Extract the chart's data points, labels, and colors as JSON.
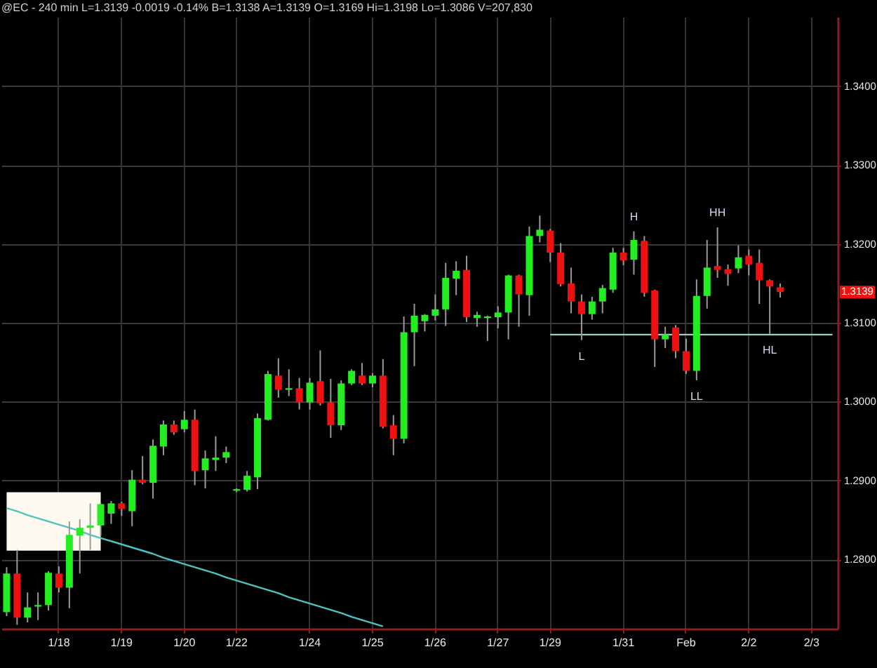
{
  "chart_data": {
    "type": "candlestick",
    "title": "@EC - 240 min L=1.3139 -0.0019 -0.14% B=1.3138 A=1.3139 O=1.3169 Hi=1.3198 Lo=1.3086 V=207,830",
    "categories": [
      null,
      null,
      null,
      null,
      null,
      "1/18",
      null,
      null,
      null,
      null,
      null,
      "1/19",
      null,
      null,
      null,
      null,
      null,
      "1/20",
      null,
      null,
      null,
      null,
      "1/22",
      null,
      null,
      null,
      null,
      null,
      null,
      "1/24",
      null,
      null,
      null,
      null,
      null,
      "1/25",
      null,
      null,
      null,
      null,
      null,
      "1/26",
      null,
      null,
      null,
      null,
      null,
      "1/27",
      null,
      null,
      null,
      null,
      "1/29",
      null,
      null,
      null,
      null,
      null,
      null,
      "1/31",
      null,
      null,
      null,
      null,
      null,
      "Feb",
      null,
      null,
      null,
      null,
      null,
      "2/2",
      null,
      null,
      null,
      null,
      null,
      "2/3",
      null,
      null
    ],
    "ohlc": [
      [
        1.2733,
        1.279,
        1.2728,
        1.2782
      ],
      [
        1.2782,
        1.2812,
        1.2717,
        1.2726
      ],
      [
        1.2726,
        1.2758,
        1.272,
        1.2739
      ],
      [
        1.274,
        1.2758,
        1.2723,
        1.2742
      ],
      [
        1.2742,
        1.2785,
        1.2735,
        1.2783
      ],
      [
        1.2782,
        1.2791,
        1.2758,
        1.2764
      ],
      [
        1.2764,
        1.2848,
        1.2738,
        1.2831
      ],
      [
        1.283,
        1.2851,
        1.2782,
        1.284
      ],
      [
        1.284,
        1.2871,
        1.2812,
        1.2843
      ],
      [
        1.2843,
        1.2871,
        1.283,
        1.287
      ],
      [
        1.2858,
        1.2874,
        1.2845,
        1.2871
      ],
      [
        1.2871,
        1.2873,
        1.2855,
        1.2864
      ],
      [
        1.2861,
        1.2913,
        1.2842,
        1.2901
      ],
      [
        1.2901,
        1.2931,
        1.2895,
        1.2897
      ],
      [
        1.2897,
        1.2952,
        1.2877,
        1.2944
      ],
      [
        1.2943,
        1.2976,
        1.2932,
        1.2971
      ],
      [
        1.2971,
        1.2976,
        1.2958,
        1.2961
      ],
      [
        1.2965,
        1.2988,
        1.2961,
        1.2977
      ],
      [
        1.2977,
        1.299,
        1.2894,
        1.2912
      ],
      [
        1.2913,
        1.2938,
        1.289,
        1.2928
      ],
      [
        1.2926,
        1.2956,
        1.2912,
        1.2929
      ],
      [
        1.2929,
        1.2943,
        1.2922,
        1.2936
      ],
      [
        1.2887,
        1.289,
        1.2885,
        1.2889
      ],
      [
        1.2888,
        1.2912,
        1.2886,
        1.2906
      ],
      [
        1.2904,
        1.2985,
        1.2889,
        1.2979
      ],
      [
        1.2977,
        1.3039,
        1.2976,
        1.3035
      ],
      [
        1.3033,
        1.3055,
        1.3005,
        1.3015
      ],
      [
        1.3015,
        1.3041,
        1.3007,
        1.3017
      ],
      [
        1.3017,
        1.303,
        1.299,
        1.2999
      ],
      [
        1.2999,
        1.303,
        1.299,
        1.3024
      ],
      [
        1.3026,
        1.3065,
        1.2995,
        1.2998
      ],
      [
        1.2999,
        1.3029,
        1.2954,
        1.297
      ],
      [
        1.297,
        1.3027,
        1.2964,
        1.3023
      ],
      [
        1.3023,
        1.3041,
        1.3021,
        1.3039
      ],
      [
        1.3033,
        1.3049,
        1.3021,
        1.3023
      ],
      [
        1.3023,
        1.3036,
        1.3018,
        1.3033
      ],
      [
        1.3033,
        1.3054,
        1.2966,
        1.2968
      ],
      [
        1.297,
        1.2983,
        1.2932,
        1.2953
      ],
      [
        1.2953,
        1.3108,
        1.2947,
        1.3088
      ],
      [
        1.3088,
        1.3124,
        1.3045,
        1.3109
      ],
      [
        1.3102,
        1.3111,
        1.3089,
        1.311
      ],
      [
        1.3109,
        1.3136,
        1.3103,
        1.3117
      ],
      [
        1.3117,
        1.3176,
        1.3096,
        1.3157
      ],
      [
        1.3156,
        1.3178,
        1.3135,
        1.3166
      ],
      [
        1.3167,
        1.3185,
        1.3101,
        1.3107
      ],
      [
        1.3106,
        1.3114,
        1.3095,
        1.311
      ],
      [
        1.3106,
        1.3109,
        1.3077,
        1.3108
      ],
      [
        1.3107,
        1.3121,
        1.3093,
        1.3113
      ],
      [
        1.3113,
        1.3161,
        1.3079,
        1.316
      ],
      [
        1.316,
        1.3161,
        1.3095,
        1.3136
      ],
      [
        1.3135,
        1.3222,
        1.3109,
        1.321
      ],
      [
        1.321,
        1.3236,
        1.3202,
        1.3218
      ],
      [
        1.3217,
        1.3219,
        1.3177,
        1.3189
      ],
      [
        1.3189,
        1.3201,
        1.3146,
        1.3149
      ],
      [
        1.315,
        1.317,
        1.3112,
        1.3127
      ],
      [
        1.3127,
        1.3136,
        1.3078,
        1.3111
      ],
      [
        1.3111,
        1.3133,
        1.3104,
        1.3127
      ],
      [
        1.3127,
        1.3148,
        1.3112,
        1.3144
      ],
      [
        1.3142,
        1.3195,
        1.3138,
        1.3189
      ],
      [
        1.3189,
        1.3195,
        1.3173,
        1.3179
      ],
      [
        1.318,
        1.3216,
        1.3161,
        1.3205
      ],
      [
        1.3204,
        1.321,
        1.3133,
        1.3138
      ],
      [
        1.3141,
        1.3142,
        1.3044,
        1.3079
      ],
      [
        1.3079,
        1.3095,
        1.3068,
        1.3085
      ],
      [
        1.3094,
        1.3097,
        1.3055,
        1.3064
      ],
      [
        1.3064,
        1.308,
        1.3035,
        1.3039
      ],
      [
        1.3039,
        1.3155,
        1.3027,
        1.3134
      ],
      [
        1.3134,
        1.3205,
        1.3118,
        1.317
      ],
      [
        1.3172,
        1.3221,
        1.3157,
        1.3167
      ],
      [
        1.3168,
        1.3174,
        1.3147,
        1.3162
      ],
      [
        1.3169,
        1.3198,
        1.3163,
        1.3183
      ],
      [
        1.3185,
        1.3193,
        1.316,
        1.3174
      ],
      [
        1.3176,
        1.3193,
        1.3124,
        1.3154
      ],
      [
        1.3154,
        1.3155,
        1.3086,
        1.3146
      ],
      [
        1.3145,
        1.315,
        1.3132,
        1.3139
      ],
      null,
      null,
      null,
      null,
      null
    ],
    "colors": [
      "#22ee22",
      "#ee1111",
      "#22ee22",
      "#22ee22",
      "#22ee22",
      "#ee1111",
      "#22ee22",
      "#22ee22",
      "#22ee22",
      "#22ee22",
      "#22ee22",
      "#ee1111",
      "#22ee22",
      "#ee1111",
      "#22ee22",
      "#22ee22",
      "#ee1111",
      "#22ee22",
      "#ee1111",
      "#22ee22",
      "#22ee22",
      "#22ee22",
      "#22ee22",
      "#22ee22",
      "#22ee22",
      "#22ee22",
      "#ee1111",
      "#22ee22",
      "#ee1111",
      "#22ee22",
      "#ee1111",
      "#ee1111",
      "#22ee22",
      "#22ee22",
      "#ee1111",
      "#22ee22",
      "#ee1111",
      "#ee1111",
      "#22ee22",
      "#22ee22",
      "#22ee22",
      "#22ee22",
      "#22ee22",
      "#22ee22",
      "#ee1111",
      "#22ee22",
      "#22ee22",
      "#22ee22",
      "#22ee22",
      "#ee1111",
      "#22ee22",
      "#22ee22",
      "#ee1111",
      "#ee1111",
      "#ee1111",
      "#ee1111",
      "#22ee22",
      "#22ee22",
      "#22ee22",
      "#ee1111",
      "#22ee22",
      "#ee1111",
      "#ee1111",
      "#22ee22",
      "#ee1111",
      "#ee1111",
      "#22ee22",
      "#22ee22",
      "#ee1111",
      "#ee1111",
      "#22ee22",
      "#ee1111",
      "#ee1111",
      "#ee1111",
      "#ee1111",
      null,
      null,
      null,
      null,
      null
    ],
    "series": [
      {
        "type": "area",
        "color": "#fffaf0",
        "values": [
          null,
          null,
          null,
          null,
          null,
          null,
          null,
          null,
          null,
          null,
          null,
          null,
          null,
          null,
          null,
          null,
          null,
          null,
          null,
          null,
          null,
          null,
          null,
          null,
          null,
          null,
          null,
          null,
          null,
          null,
          null,
          null,
          null,
          null,
          null,
          null,
          null,
          null,
          null,
          null,
          null,
          null,
          null,
          null,
          null,
          null,
          null,
          null,
          null,
          null,
          null,
          null,
          null,
          null,
          null,
          null,
          null,
          null,
          null,
          null,
          null,
          null,
          null,
          null,
          null,
          null,
          null,
          null,
          null,
          null,
          null,
          null,
          null,
          null,
          null,
          null,
          null,
          null,
          null,
          null
        ],
        "lower": [
          1.2811,
          1.2811,
          1.2811,
          1.2811,
          1.2811,
          1.2811,
          1.2811,
          1.2811,
          1.2811,
          1.2811,
          null,
          null,
          null,
          null,
          null,
          null,
          null,
          null,
          null,
          null,
          null,
          null,
          null,
          null,
          null,
          null,
          null,
          null,
          null,
          null,
          null,
          null,
          null,
          null,
          null,
          null,
          null,
          null,
          null,
          null,
          null,
          null,
          null,
          null,
          null,
          null,
          null,
          null,
          null,
          null,
          null,
          null,
          null,
          null,
          null,
          null,
          null,
          null,
          null,
          null,
          null,
          null,
          null,
          null,
          null,
          null,
          null,
          null,
          null,
          null,
          null,
          null,
          null,
          null,
          null,
          null,
          null,
          null,
          null,
          null
        ],
        "upper": [
          1.2885,
          1.2885,
          1.2885,
          1.2885,
          1.2885,
          1.2885,
          1.2885,
          1.2885,
          1.2885,
          1.2885,
          null,
          null,
          null,
          null,
          null,
          null,
          null,
          null,
          null,
          null,
          null,
          null,
          null,
          null,
          null,
          null,
          null,
          null,
          null,
          null,
          null,
          null,
          null,
          null,
          null,
          null,
          null,
          null,
          null,
          null,
          null,
          null,
          null,
          null,
          null,
          null,
          null,
          null,
          null,
          null,
          null,
          null,
          null,
          null,
          null,
          null,
          null,
          null,
          null,
          null,
          null,
          null,
          null,
          null,
          null,
          null,
          null,
          null,
          null,
          null,
          null,
          null,
          null,
          null,
          null,
          null,
          null,
          null,
          null,
          null
        ]
      },
      {
        "type": "line",
        "color": "#4fc1c1",
        "values": [
          1.2865,
          1.2861,
          1.2856,
          1.2852,
          1.2848,
          1.2844,
          1.284,
          1.2836,
          1.2831,
          1.2827,
          1.2823,
          1.2819,
          1.2815,
          1.2811,
          1.2807,
          1.2802,
          1.2798,
          1.2794,
          1.279,
          1.2786,
          1.2782,
          1.2777,
          1.2773,
          1.2769,
          1.2765,
          1.2761,
          1.2757,
          1.2752,
          1.2748,
          1.2744,
          1.274,
          1.2736,
          1.2732,
          1.2727,
          1.2723,
          1.2719,
          1.2715,
          null,
          null,
          null,
          null,
          null,
          null,
          null,
          null,
          null,
          null,
          null,
          null,
          null,
          null,
          null,
          null,
          null,
          null,
          null,
          null,
          null,
          null,
          null,
          null,
          null,
          null,
          null,
          null,
          null,
          null,
          null,
          null,
          null,
          null,
          null,
          null,
          null,
          null,
          null,
          null,
          null,
          null,
          null
        ]
      },
      {
        "type": "line",
        "color": "#8fd3c9",
        "values": [
          null,
          null,
          null,
          null,
          null,
          null,
          null,
          null,
          null,
          null,
          null,
          null,
          null,
          null,
          null,
          null,
          null,
          null,
          null,
          null,
          null,
          null,
          null,
          null,
          null,
          null,
          null,
          null,
          null,
          null,
          null,
          null,
          null,
          null,
          null,
          null,
          null,
          null,
          null,
          null,
          null,
          null,
          null,
          null,
          null,
          null,
          null,
          null,
          null,
          null,
          null,
          null,
          1.3085,
          1.3085,
          1.3085,
          1.3085,
          1.3085,
          1.3085,
          1.3085,
          1.3085,
          1.3085,
          1.3085,
          1.3085,
          1.3085,
          1.3085,
          1.3085,
          1.3085,
          1.3085,
          1.3085,
          1.3085,
          1.3085,
          1.3085,
          1.3085,
          1.3085,
          1.3085,
          1.3085,
          1.3085,
          1.3085,
          1.3085,
          1.3085
        ]
      }
    ],
    "ylim": [
      1.2712,
      1.3488
    ],
    "yticks": [
      {
        "value": 1.28,
        "label": "1.2800"
      },
      {
        "value": 1.29,
        "label": "1.2900"
      },
      {
        "value": 1.3,
        "label": "1.3000"
      },
      {
        "value": 1.31,
        "label": "1.3100"
      },
      {
        "value": 1.32,
        "label": "1.3200"
      },
      {
        "value": 1.33,
        "label": "1.3300"
      },
      {
        "value": 1.34,
        "label": "1.3400"
      }
    ],
    "grid": true,
    "annotations": [
      {
        "text": "H",
        "y": 1.3216
      },
      {
        "text": "HH",
        "y": 1.3221
      },
      {
        "text": "L",
        "y": 1.3078
      },
      {
        "text": "LL",
        "y": 1.3027
      },
      {
        "text": "HL",
        "y": 1.3086
      },
      "1.3139"
    ]
  }
}
